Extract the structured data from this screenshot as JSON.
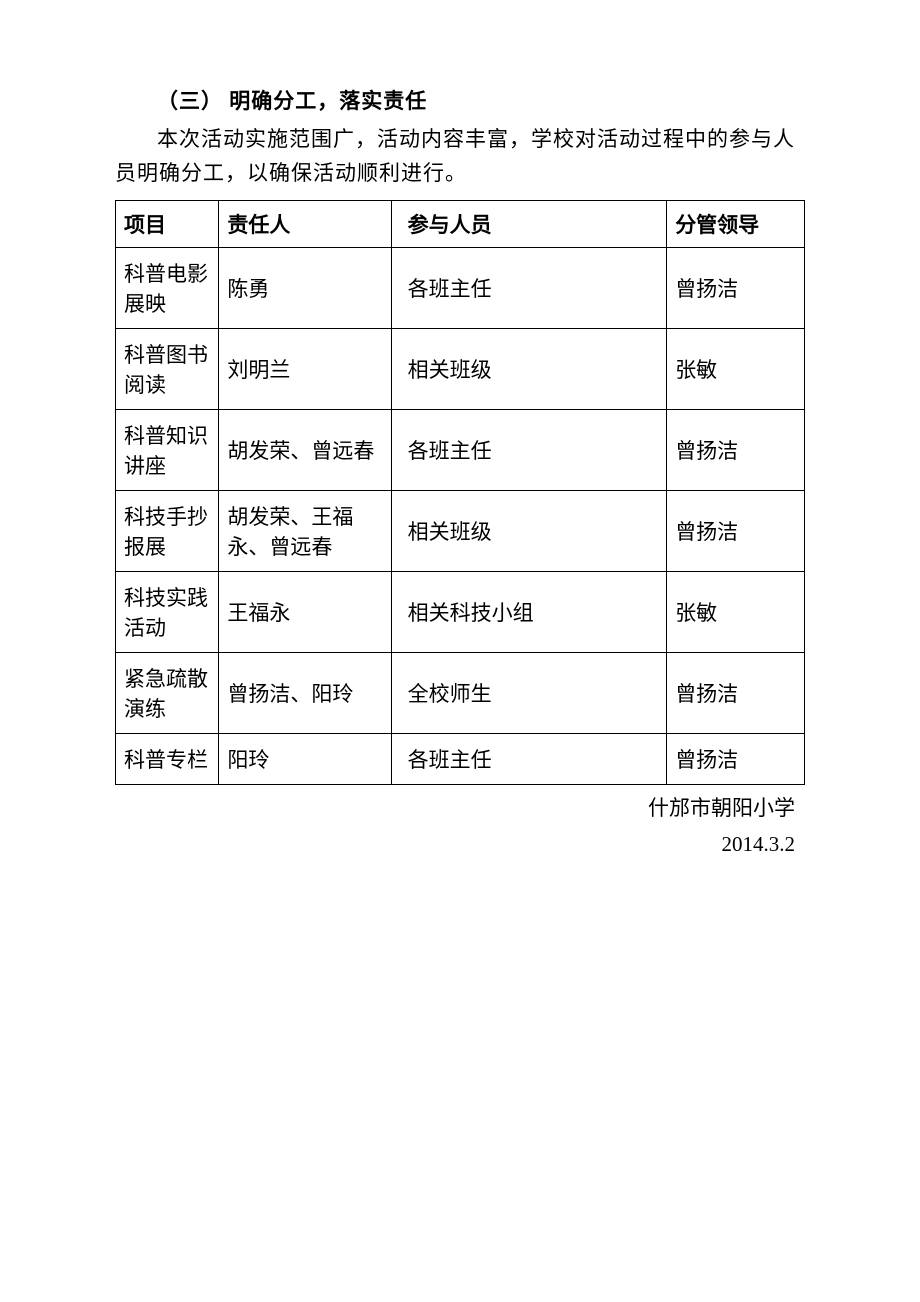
{
  "section": {
    "title": "（三）  明确分工，落实责任",
    "intro": "本次活动实施范围广，活动内容丰富，学校对活动过程中的参与人员明确分工，以确保活动顺利进行。"
  },
  "table": {
    "columns": [
      "项目",
      "责任人",
      "参与人员",
      "分管领导"
    ],
    "rows": [
      [
        "科普电影展映",
        "陈勇",
        "  各班主任",
        "曾扬洁"
      ],
      [
        "科普图书阅读",
        "刘明兰",
        "  相关班级",
        "张敏"
      ],
      [
        "科普知识讲座",
        "胡发荣、曾远春",
        "  各班主任",
        "曾扬洁"
      ],
      [
        "科技手抄报展",
        "胡发荣、王福永、曾远春",
        "相关班级",
        "曾扬洁"
      ],
      [
        "科技实践活动",
        "王福永",
        "相关科技小组",
        "张敏"
      ],
      [
        "紧急疏散演练",
        "曾扬洁、阳玲",
        "全校师生",
        "曾扬洁"
      ],
      [
        "科普专栏",
        "阳玲",
        "各班主任",
        "曾扬洁"
      ]
    ],
    "col_widths": [
      "15%",
      "25%",
      "40%",
      "20%"
    ],
    "border_color": "#000000",
    "font_size": 21,
    "background_color": "#ffffff"
  },
  "footer": {
    "school": "什邡市朝阳小学",
    "date": "2014.3.2"
  }
}
